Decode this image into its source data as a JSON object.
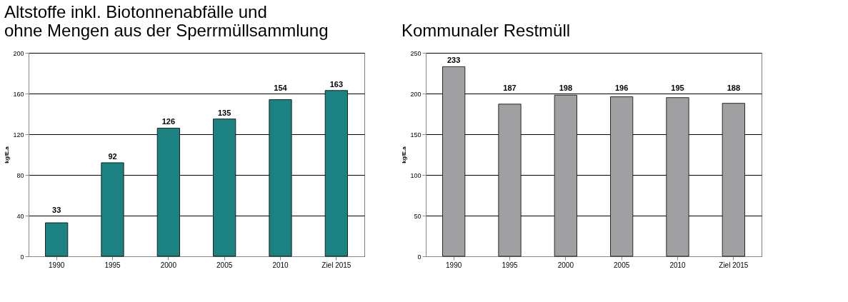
{
  "chart_data": [
    {
      "type": "bar",
      "title": "Altstoffe inkl. Biotonnenabfälle und\nohne Mengen aus der Sperrmüllsammlung",
      "ylabel": "kg/E.a",
      "categories": [
        "1990",
        "1995",
        "2000",
        "2005",
        "2010",
        "Ziel 2015"
      ],
      "values": [
        33,
        92,
        126,
        135,
        154,
        163
      ],
      "color": "#1b8181",
      "ylim": [
        0,
        200
      ],
      "yticks": [
        0,
        40,
        80,
        120,
        160,
        200
      ],
      "grid": "y",
      "data_labels": true
    },
    {
      "type": "bar",
      "title": "Kommunaler Restmüll",
      "ylabel": "kg/E.a",
      "categories": [
        "1990",
        "1995",
        "2000",
        "2005",
        "2010",
        "Ziel 2015"
      ],
      "values": [
        233,
        187,
        198,
        196,
        195,
        188
      ],
      "color": "#a0a0a2",
      "ylim": [
        0,
        250
      ],
      "yticks": [
        0,
        50,
        100,
        150,
        200,
        250
      ],
      "grid": "y",
      "data_labels": true
    }
  ]
}
